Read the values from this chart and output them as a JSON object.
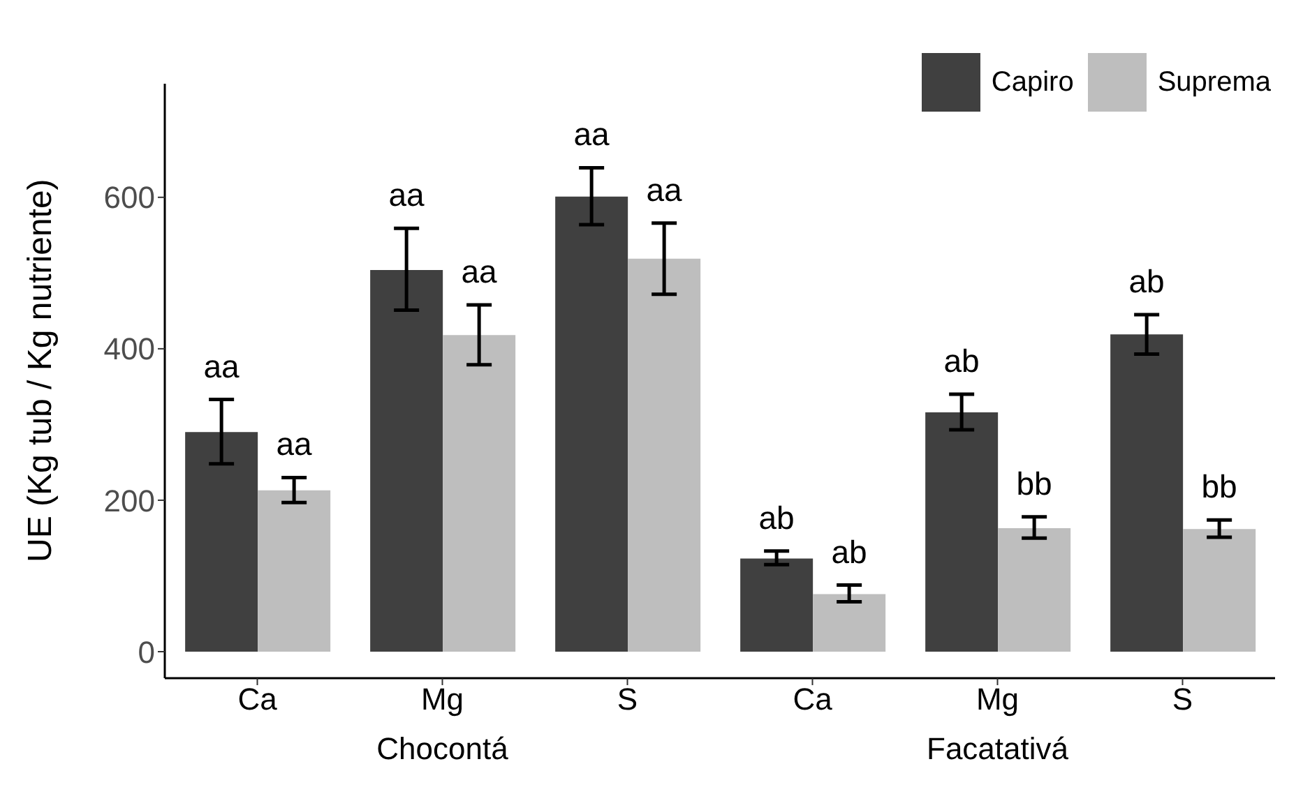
{
  "chart_data": {
    "type": "bar",
    "ylabel": "UE (Kg tub / Kg nutriente)",
    "categories": [
      "Ca",
      "Mg",
      "S",
      "Ca",
      "Mg",
      "S"
    ],
    "series": [
      {
        "name": "Capiro",
        "color": "#404040",
        "values": [
          290,
          504,
          601,
          123,
          316,
          419
        ],
        "errors": [
          [
            248,
            333
          ],
          [
            451,
            559
          ],
          [
            564,
            639
          ],
          [
            115,
            133
          ],
          [
            293,
            340
          ],
          [
            393,
            445
          ]
        ],
        "value_labels": [
          "aa",
          "aa",
          "aa",
          "ab",
          "ab",
          "ab"
        ]
      },
      {
        "name": "Suprema",
        "color": "#bebebe",
        "values": [
          213,
          418,
          519,
          76,
          163,
          162
        ],
        "errors": [
          [
            197,
            230
          ],
          [
            379,
            458
          ],
          [
            472,
            566
          ],
          [
            66,
            88
          ],
          [
            150,
            178
          ],
          [
            151,
            174
          ]
        ],
        "value_labels": [
          "aa",
          "aa",
          "aa",
          "ab",
          "bb",
          "bb"
        ]
      }
    ],
    "annotations": [
      "Chocontá",
      "Facatativá"
    ],
    "ylim": [
      -35,
      750
    ],
    "yticks": [
      0,
      200,
      400,
      600
    ],
    "legend": "top right"
  }
}
